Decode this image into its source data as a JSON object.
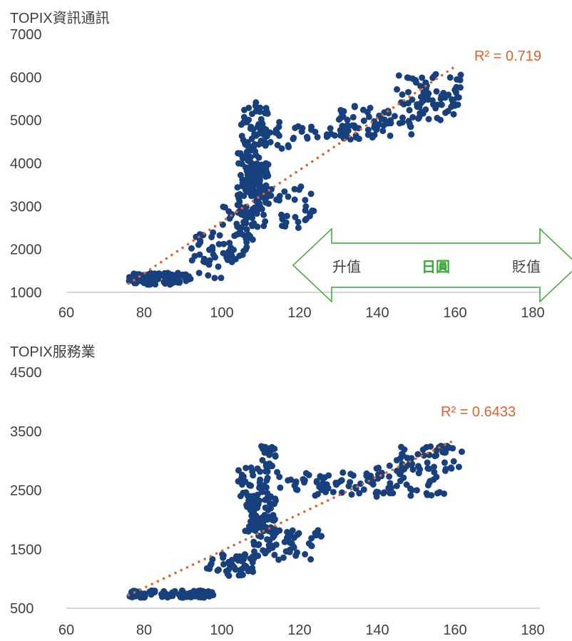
{
  "colors": {
    "point": "#17407d",
    "trend": "#e8602c",
    "axis": "#bfbfbf",
    "arrow": "#3aa935",
    "text": "#404040"
  },
  "annotation": {
    "left": "升值",
    "middle": "日圓",
    "right": "貶值"
  },
  "chart_data": [
    {
      "type": "scatter",
      "title": "TOPIX資訊通訊",
      "xlim": [
        60,
        180
      ],
      "ylim": [
        1000,
        7000
      ],
      "xticks": [
        "60",
        "80",
        "100",
        "120",
        "140",
        "160",
        "180"
      ],
      "yticks": [
        "1000",
        "2000",
        "3000",
        "4000",
        "5000",
        "6000",
        "7000"
      ],
      "r2_label": "R² = 0.719",
      "trendline": {
        "x": [
          76,
          160
        ],
        "y": [
          1200,
          6250
        ]
      },
      "clusters": [
        {
          "x": [
            76,
            92
          ],
          "y": [
            1180,
            1450
          ],
          "n": 90
        },
        {
          "x": [
            92,
            100
          ],
          "y": [
            1300,
            2400
          ],
          "n": 30
        },
        {
          "x": [
            100,
            108
          ],
          "y": [
            1700,
            3000
          ],
          "n": 55
        },
        {
          "x": [
            104,
            110
          ],
          "y": [
            2800,
            4500
          ],
          "n": 80
        },
        {
          "x": [
            106,
            112
          ],
          "y": [
            3200,
            4000
          ],
          "n": 60
        },
        {
          "x": [
            105,
            112
          ],
          "y": [
            4400,
            5450
          ],
          "n": 45
        },
        {
          "x": [
            110,
            118
          ],
          "y": [
            4300,
            5000
          ],
          "n": 20
        },
        {
          "x": [
            108,
            124
          ],
          "y": [
            2500,
            3500
          ],
          "n": 45
        },
        {
          "x": [
            118,
            140
          ],
          "y": [
            4550,
            4900
          ],
          "n": 40
        },
        {
          "x": [
            130,
            150
          ],
          "y": [
            4600,
            5350
          ],
          "n": 50
        },
        {
          "x": [
            145,
            162
          ],
          "y": [
            5300,
            6100
          ],
          "n": 50
        },
        {
          "x": [
            150,
            160
          ],
          "y": [
            5000,
            5600
          ],
          "n": 25
        }
      ]
    },
    {
      "type": "scatter",
      "title": "TOPIX服務業",
      "xlim": [
        60,
        180
      ],
      "ylim": [
        500,
        4500
      ],
      "xticks": [
        "60",
        "80",
        "100",
        "120",
        "140",
        "160",
        "180"
      ],
      "yticks": [
        "500",
        "1500",
        "2500",
        "3500",
        "4500"
      ],
      "r2_label": "R² = 0.6433",
      "trendline": {
        "x": [
          76,
          160
        ],
        "y": [
          720,
          3350
        ]
      },
      "clusters": [
        {
          "x": [
            76,
            98
          ],
          "y": [
            680,
            800
          ],
          "n": 90
        },
        {
          "x": [
            96,
            108
          ],
          "y": [
            1050,
            1450
          ],
          "n": 50
        },
        {
          "x": [
            106,
            114
          ],
          "y": [
            1800,
            2400
          ],
          "n": 90
        },
        {
          "x": [
            104,
            112
          ],
          "y": [
            2400,
            2900
          ],
          "n": 35
        },
        {
          "x": [
            110,
            114
          ],
          "y": [
            2900,
            3250
          ],
          "n": 20
        },
        {
          "x": [
            108,
            126
          ],
          "y": [
            1300,
            1850
          ],
          "n": 60
        },
        {
          "x": [
            114,
            124
          ],
          "y": [
            2500,
            2850
          ],
          "n": 15
        },
        {
          "x": [
            124,
            140
          ],
          "y": [
            2350,
            2800
          ],
          "n": 45
        },
        {
          "x": [
            138,
            158
          ],
          "y": [
            2400,
            2950
          ],
          "n": 50
        },
        {
          "x": [
            145,
            162
          ],
          "y": [
            2800,
            3250
          ],
          "n": 45
        }
      ]
    }
  ]
}
